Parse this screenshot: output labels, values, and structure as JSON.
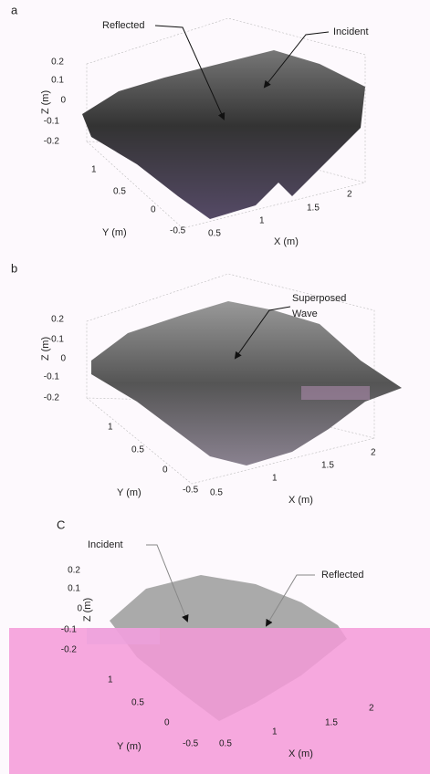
{
  "panels": [
    {
      "label": "a",
      "annotations": [
        "Reflected",
        "Incident"
      ],
      "z_axis": {
        "label": "Z (m)",
        "ticks": [
          "0.2",
          "0.1",
          "0",
          "-0.1",
          "-0.2"
        ]
      },
      "y_axis": {
        "label": "Y (m)",
        "ticks": [
          "1",
          "0.5",
          "0",
          "-0.5"
        ]
      },
      "x_axis": {
        "label": "X (m)",
        "ticks": [
          "0.5",
          "1",
          "1.5",
          "2"
        ]
      }
    },
    {
      "label": "b",
      "annotations": [
        "Superposed",
        "Wave"
      ],
      "z_axis": {
        "label": "Z (m)",
        "ticks": [
          "0.2",
          "0.1",
          "0",
          "-0.1",
          "-0.2"
        ]
      },
      "y_axis": {
        "label": "Y (m)",
        "ticks": [
          "1",
          "0.5",
          "0",
          "-0.5"
        ]
      },
      "x_axis": {
        "label": "X (m)",
        "ticks": [
          "0.5",
          "1",
          "1.5",
          "2"
        ]
      }
    },
    {
      "label": "C",
      "annotations": [
        "Incident",
        "Reflected"
      ],
      "z_axis": {
        "label": "Z (m)",
        "ticks": [
          "0.2",
          "0.1",
          "0",
          "-0.1",
          "-0.2"
        ]
      },
      "y_axis": {
        "label": "Y (m)",
        "ticks": [
          "1",
          "0.5",
          "0",
          "-0.5"
        ]
      },
      "x_axis": {
        "label": "X (m)",
        "ticks": [
          "0.5",
          "1",
          "1.5",
          "2"
        ]
      }
    }
  ]
}
